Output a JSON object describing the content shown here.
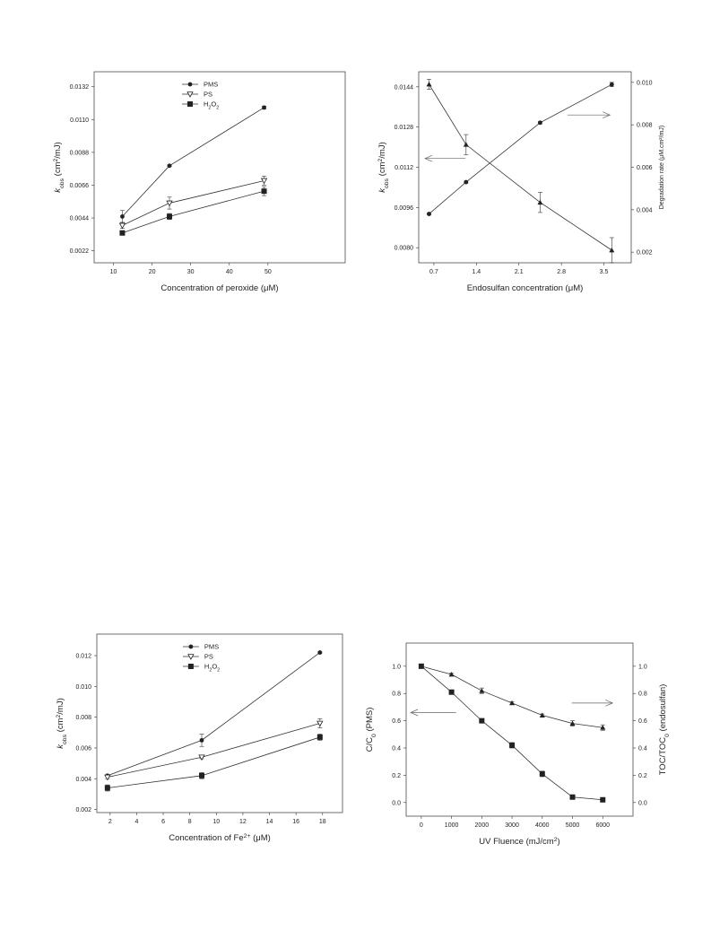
{
  "chart_data": [
    {
      "type": "line",
      "title": "",
      "xlabel": "Concentration of peroxide (μM)",
      "ylabel_html": [
        "k",
        "obs",
        " (cm",
        "2",
        "/mJ)"
      ],
      "xlim": [
        5,
        70
      ],
      "ylim": [
        0.0014,
        0.0142
      ],
      "xticks": [
        10,
        20,
        30,
        40,
        50
      ],
      "yticks": [
        0.0022,
        0.0044,
        0.0066,
        0.0088,
        0.011,
        0.0132
      ],
      "ytick_labels": [
        "0.0022",
        "0.0044",
        "0.0066",
        "0.0088",
        "0.0110",
        "0.0132"
      ],
      "legend_position": "top-center",
      "series": [
        {
          "name": "PMS",
          "marker": "circle",
          "x": [
            12.3,
            24.5,
            49
          ],
          "y": [
            0.0045,
            0.0079,
            0.0118
          ],
          "err": [
            0.0004,
            5e-05,
            0.0001
          ]
        },
        {
          "name": "PS",
          "marker": "triangle-down-open",
          "x": [
            12.3,
            24.5,
            49
          ],
          "y": [
            0.0039,
            0.0054,
            0.0069
          ],
          "err": [
            0.0002,
            0.0004,
            0.0003
          ]
        },
        {
          "name_parts": [
            "H",
            "2",
            "O",
            "2"
          ],
          "marker": "square",
          "x": [
            12.3,
            24.5,
            49
          ],
          "y": [
            0.0034,
            0.0045,
            0.0062
          ],
          "err": [
            0.0001,
            0.0002,
            0.0003
          ]
        }
      ]
    },
    {
      "type": "line",
      "title": "",
      "xlabel": "Endosulfan concentration (μM)",
      "ylabel_html": [
        "k",
        "obs",
        " (cm",
        "2",
        "/mJ)"
      ],
      "y2label": "Degradation rate (μM.cm²/mJ)",
      "xlim": [
        0.45,
        3.95
      ],
      "ylim": [
        0.0074,
        0.015
      ],
      "y2lim": [
        0.0015,
        0.0105
      ],
      "xticks": [
        0.7,
        1.4,
        2.1,
        2.8,
        3.5
      ],
      "yticks": [
        0.008,
        0.0096,
        0.0112,
        0.0128,
        0.0144
      ],
      "ytick_labels": [
        "0.0080",
        "0.0096",
        "0.0112",
        "0.0128",
        "0.0144"
      ],
      "y2ticks": [
        0.002,
        0.004,
        0.006,
        0.008,
        0.01
      ],
      "y2tick_labels": [
        "0.002",
        "0.004",
        "0.006",
        "0.008",
        "0.010"
      ],
      "series": [
        {
          "axis": "left",
          "marker": "triangle",
          "x": [
            0.62,
            1.23,
            2.45,
            3.63
          ],
          "y": [
            0.0145,
            0.0121,
            0.0098,
            0.0079
          ],
          "err": [
            0.0002,
            0.0004,
            0.0004,
            0.0005
          ]
        },
        {
          "axis": "right",
          "marker": "circle",
          "x": [
            0.62,
            1.23,
            2.45,
            3.63
          ],
          "y": [
            0.0038,
            0.0053,
            0.0081,
            0.0099
          ],
          "err": [
            5e-05,
            5e-05,
            5e-05,
            0.0001
          ]
        }
      ],
      "arrows": [
        {
          "direction": "left",
          "x_frac": [
            0.03,
            0.22
          ],
          "y_value": 0.01155
        },
        {
          "direction": "right",
          "x_frac": [
            0.7,
            0.9
          ],
          "y_value": 0.01328
        }
      ]
    },
    {
      "type": "line",
      "title": "",
      "xlabel_html": [
        "Concentration of Fe",
        "2+",
        " (μM)"
      ],
      "ylabel_html": [
        "k",
        "obs",
        " (cm",
        "2",
        "/mJ)"
      ],
      "xlim": [
        1,
        19.5
      ],
      "ylim": [
        0.0018,
        0.0134
      ],
      "xticks": [
        2,
        4,
        6,
        8,
        10,
        12,
        14,
        16,
        18
      ],
      "yticks": [
        0.002,
        0.004,
        0.006,
        0.008,
        0.01,
        0.012
      ],
      "ytick_labels": [
        "0.002",
        "0.004",
        "0.006",
        "0.008",
        "0.010",
        "0.012"
      ],
      "legend_position": "top-center",
      "series": [
        {
          "name": "PMS",
          "marker": "circle",
          "x": [
            1.8,
            8.9,
            17.8
          ],
          "y": [
            0.0042,
            0.0065,
            0.0122
          ],
          "err": [
            5e-05,
            0.0004,
            5e-05
          ]
        },
        {
          "name": "PS",
          "marker": "triangle-down-open",
          "x": [
            1.8,
            8.9,
            17.8
          ],
          "y": [
            0.0041,
            0.0054,
            0.0076
          ],
          "err": [
            0.0001,
            0.0001,
            0.0003
          ]
        },
        {
          "name_parts": [
            "H",
            "2",
            "O",
            "2"
          ],
          "marker": "square",
          "x": [
            1.8,
            8.9,
            17.8
          ],
          "y": [
            0.0034,
            0.0042,
            0.0067
          ],
          "err": [
            0.0002,
            0.0002,
            0.0002
          ]
        }
      ]
    },
    {
      "type": "line",
      "title": "",
      "xlabel_html": [
        "UV Fluence (mJ/cm",
        "2",
        ")"
      ],
      "ylabel_html": [
        "C/C",
        "0",
        " (PMS)"
      ],
      "y2label_html": [
        "TOC/TOC",
        "0",
        " (endosulfan)"
      ],
      "xlim": [
        -500,
        7000
      ],
      "ylim": [
        -0.1,
        1.17
      ],
      "xticks": [
        0,
        1000,
        2000,
        3000,
        4000,
        5000,
        6000
      ],
      "yticks": [
        0,
        0.2,
        0.4,
        0.6,
        0.8,
        1.0
      ],
      "ytick_labels": [
        "0.0",
        "0.2",
        "0.4",
        "0.6",
        "0.8",
        "1.0"
      ],
      "y2ticks": [
        0,
        0.2,
        0.4,
        0.6,
        0.8,
        1.0
      ],
      "y2tick_labels": [
        "0.0",
        "0.2",
        "0.4",
        "0.6",
        "0.8",
        "1.0"
      ],
      "series": [
        {
          "axis": "left",
          "marker": "square",
          "x": [
            0,
            1000,
            2000,
            3000,
            4000,
            5000,
            6000
          ],
          "y": [
            1.0,
            0.81,
            0.6,
            0.42,
            0.21,
            0.04,
            0.02
          ],
          "err": [
            0.01,
            0.015,
            0.01,
            0.02,
            0.02,
            0.01,
            0.01
          ]
        },
        {
          "axis": "left",
          "marker": "triangle",
          "x": [
            0,
            1000,
            2000,
            3000,
            4000,
            5000,
            6000
          ],
          "y": [
            1.0,
            0.94,
            0.82,
            0.73,
            0.64,
            0.58,
            0.55
          ],
          "err": [
            0.005,
            0.01,
            0.02,
            0.01,
            0.01,
            0.02,
            0.02
          ]
        }
      ],
      "arrows": [
        {
          "direction": "left",
          "x_frac": [
            0.02,
            0.22
          ],
          "y_value": 0.66
        },
        {
          "direction": "right",
          "x_frac": [
            0.73,
            0.91
          ],
          "y_value": 0.73
        }
      ]
    }
  ]
}
